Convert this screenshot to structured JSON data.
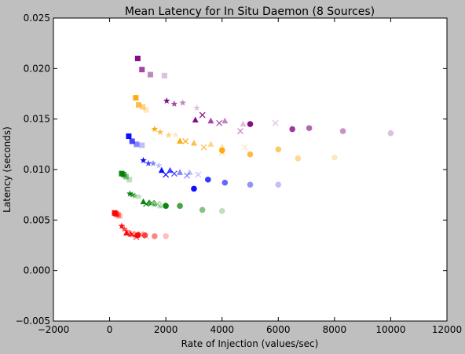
{
  "chart_data": {
    "type": "scatter",
    "title": "Mean Latency for In Situ Daemon (8 Sources)",
    "xlabel": "Rate of Injection (values/sec)",
    "ylabel": "Latency (seconds)",
    "xlim": [
      -2000,
      12000
    ],
    "ylim": [
      -0.005,
      0.025
    ],
    "xticks": [
      -2000,
      0,
      2000,
      4000,
      6000,
      8000,
      10000,
      12000
    ],
    "xtick_labels": [
      "−2000",
      "0",
      "2000",
      "4000",
      "6000",
      "8000",
      "10000",
      "12000"
    ],
    "yticks": [
      -0.005,
      0.0,
      0.005,
      0.01,
      0.015,
      0.02,
      0.025
    ],
    "ytick_labels": [
      "−0.005",
      "0.000",
      "0.005",
      "0.010",
      "0.015",
      "0.020",
      "0.025"
    ],
    "grid": false,
    "legend": null,
    "series": [
      {
        "color": "#ff0000",
        "marker": "square",
        "points": [
          [
            180,
            0.0057
          ],
          [
            230,
            0.0056
          ],
          [
            300,
            0.0055
          ],
          [
            360,
            0.0054
          ]
        ]
      },
      {
        "color": "#ff0000",
        "marker": "star",
        "points": [
          [
            430,
            0.0044
          ],
          [
            520,
            0.0041
          ],
          [
            610,
            0.0039
          ],
          [
            720,
            0.0038
          ]
        ]
      },
      {
        "color": "#ff0000",
        "marker": "triangle",
        "points": [
          [
            600,
            0.0037
          ],
          [
            750,
            0.0036
          ],
          [
            920,
            0.0035
          ],
          [
            1060,
            0.0036
          ]
        ]
      },
      {
        "color": "#ff0000",
        "marker": "x",
        "points": [
          [
            800,
            0.0036
          ],
          [
            950,
            0.0033
          ],
          [
            1100,
            0.0036
          ],
          [
            1300,
            0.0034
          ]
        ]
      },
      {
        "color": "#ff0000",
        "marker": "circle",
        "points": [
          [
            1000,
            0.0035
          ],
          [
            1250,
            0.0035
          ],
          [
            1600,
            0.0034
          ],
          [
            2000,
            0.0034
          ]
        ]
      },
      {
        "color": "#008000",
        "marker": "square",
        "points": [
          [
            430,
            0.0096
          ],
          [
            500,
            0.0095
          ],
          [
            580,
            0.0093
          ],
          [
            700,
            0.009
          ]
        ]
      },
      {
        "color": "#008000",
        "marker": "star",
        "points": [
          [
            720,
            0.0076
          ],
          [
            800,
            0.0075
          ],
          [
            900,
            0.0074
          ],
          [
            1050,
            0.0073
          ]
        ]
      },
      {
        "color": "#008000",
        "marker": "triangle",
        "points": [
          [
            1200,
            0.0068
          ],
          [
            1400,
            0.0067
          ],
          [
            1600,
            0.0066
          ],
          [
            1800,
            0.0064
          ]
        ]
      },
      {
        "color": "#008000",
        "marker": "x",
        "points": [
          [
            1300,
            0.0066
          ],
          [
            1500,
            0.0067
          ],
          [
            1700,
            0.0066
          ],
          [
            1900,
            0.0065
          ]
        ]
      },
      {
        "color": "#008000",
        "marker": "circle",
        "points": [
          [
            2000,
            0.0064
          ],
          [
            2500,
            0.0064
          ],
          [
            3300,
            0.006
          ],
          [
            4000,
            0.0059
          ]
        ]
      },
      {
        "color": "#0000ff",
        "marker": "square",
        "points": [
          [
            680,
            0.0133
          ],
          [
            800,
            0.0128
          ],
          [
            960,
            0.0125
          ],
          [
            1150,
            0.0124
          ]
        ]
      },
      {
        "color": "#0000ff",
        "marker": "star",
        "points": [
          [
            1200,
            0.0109
          ],
          [
            1380,
            0.0106
          ],
          [
            1550,
            0.0106
          ],
          [
            1750,
            0.0104
          ]
        ]
      },
      {
        "color": "#0000ff",
        "marker": "triangle",
        "points": [
          [
            1850,
            0.0099
          ],
          [
            2150,
            0.0099
          ],
          [
            2500,
            0.0097
          ],
          [
            2850,
            0.0097
          ]
        ]
      },
      {
        "color": "#0000ff",
        "marker": "x",
        "points": [
          [
            2000,
            0.0095
          ],
          [
            2300,
            0.0096
          ],
          [
            2750,
            0.0094
          ],
          [
            3150,
            0.0095
          ]
        ]
      },
      {
        "color": "#0000ff",
        "marker": "circle",
        "points": [
          [
            3000,
            0.0081
          ],
          [
            3500,
            0.009
          ],
          [
            4100,
            0.0087
          ],
          [
            5000,
            0.0085
          ],
          [
            6000,
            0.0085
          ]
        ]
      },
      {
        "color": "#ffa500",
        "marker": "square",
        "points": [
          [
            930,
            0.0171
          ],
          [
            1030,
            0.0164
          ],
          [
            1180,
            0.0162
          ],
          [
            1300,
            0.0159
          ]
        ]
      },
      {
        "color": "#ffa500",
        "marker": "star",
        "points": [
          [
            1600,
            0.014
          ],
          [
            1800,
            0.0137
          ],
          [
            2100,
            0.0134
          ],
          [
            2350,
            0.0134
          ]
        ]
      },
      {
        "color": "#ffa500",
        "marker": "triangle",
        "points": [
          [
            2500,
            0.0128
          ],
          [
            3000,
            0.0126
          ],
          [
            3600,
            0.0125
          ],
          [
            4000,
            0.0123
          ]
        ]
      },
      {
        "color": "#ffa500",
        "marker": "x",
        "points": [
          [
            2700,
            0.0128
          ],
          [
            3350,
            0.0122
          ],
          [
            4000,
            0.0117
          ],
          [
            4800,
            0.0122
          ]
        ]
      },
      {
        "color": "#ffa500",
        "marker": "circle",
        "points": [
          [
            4000,
            0.0119
          ],
          [
            5000,
            0.0115
          ],
          [
            6000,
            0.012
          ],
          [
            6700,
            0.0111
          ],
          [
            8000,
            0.0112
          ]
        ]
      },
      {
        "color": "#800080",
        "marker": "square",
        "points": [
          [
            1000,
            0.021
          ],
          [
            1150,
            0.0199
          ],
          [
            1450,
            0.0194
          ],
          [
            1950,
            0.0193
          ]
        ]
      },
      {
        "color": "#800080",
        "marker": "star",
        "points": [
          [
            2030,
            0.0168
          ],
          [
            2300,
            0.0165
          ],
          [
            2600,
            0.0166
          ],
          [
            3100,
            0.0161
          ]
        ]
      },
      {
        "color": "#800080",
        "marker": "triangle",
        "points": [
          [
            3050,
            0.0149
          ],
          [
            3600,
            0.0148
          ],
          [
            4100,
            0.0148
          ],
          [
            4750,
            0.0145
          ]
        ]
      },
      {
        "color": "#800080",
        "marker": "x",
        "points": [
          [
            3300,
            0.0154
          ],
          [
            3900,
            0.0146
          ],
          [
            4650,
            0.0138
          ],
          [
            5900,
            0.0146
          ]
        ]
      },
      {
        "color": "#800080",
        "marker": "circle",
        "points": [
          [
            5000,
            0.0145
          ],
          [
            6500,
            0.014
          ],
          [
            7100,
            0.0141
          ],
          [
            8300,
            0.0138
          ],
          [
            10000,
            0.0136
          ]
        ]
      }
    ]
  }
}
